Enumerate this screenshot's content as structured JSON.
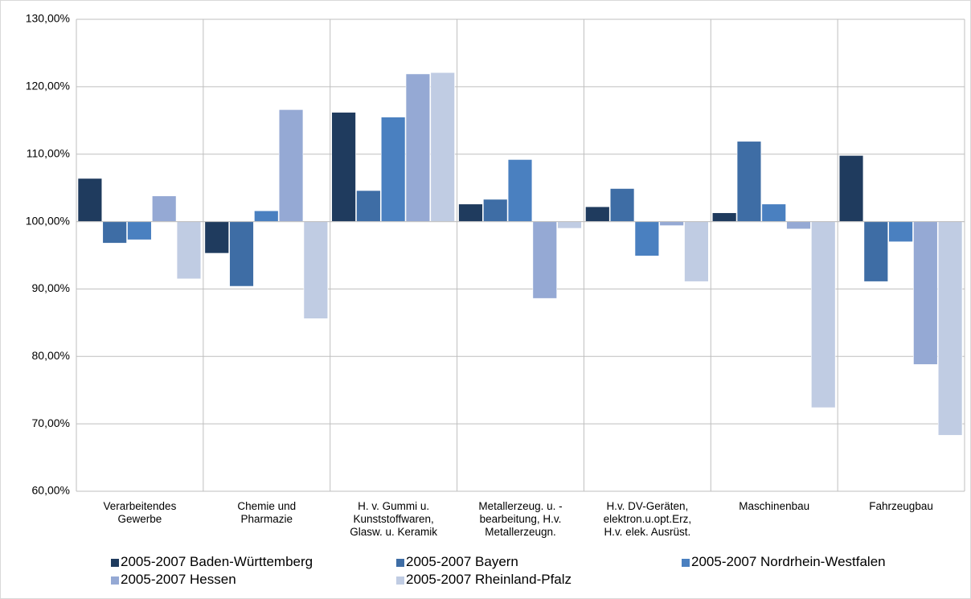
{
  "chart_data": {
    "type": "bar",
    "bar_base": 100,
    "categories": [
      "Verarbeitendes\nGewerbe",
      "Chemie und\nPharmazie",
      "H. v. Gummi u.\nKunststoffwaren,\nGlasw. u. Keramik",
      "Metallerzeug. u. -\nbearbeitung, H.v.\nMetallerzeugn.",
      "H.v. DV-Geräten,\nelektron.u.opt.Erz,\nH.v. elek. Ausrüst.",
      "Maschinenbau",
      "Fahrzeugbau"
    ],
    "series": [
      {
        "name": "2005-2007 Baden-Württemberg",
        "color": "#1f3b5e",
        "values": [
          106.4,
          95.3,
          116.2,
          102.6,
          102.2,
          101.3,
          109.8
        ]
      },
      {
        "name": "2005-2007 Bayern",
        "color": "#3e6da5",
        "values": [
          96.8,
          90.4,
          104.6,
          103.3,
          104.9,
          111.9,
          91.1
        ]
      },
      {
        "name": "2005-2007 Nordrhein-Westfalen",
        "color": "#4a80c0",
        "values": [
          97.3,
          101.6,
          115.5,
          109.2,
          94.9,
          102.6,
          97.0
        ]
      },
      {
        "name": "2005-2007 Hessen",
        "color": "#95a9d4",
        "values": [
          103.8,
          116.6,
          121.9,
          88.6,
          99.4,
          98.9,
          78.8
        ]
      },
      {
        "name": "2005-2007 Rheinland-Pfalz",
        "color": "#c0cce3",
        "values": [
          91.5,
          85.6,
          122.1,
          99.0,
          91.1,
          72.4,
          68.3
        ]
      }
    ],
    "ylim": [
      60,
      130
    ],
    "yticks": [
      {
        "value": 60,
        "label": "60,00%"
      },
      {
        "value": 70,
        "label": "70,00%"
      },
      {
        "value": 80,
        "label": "80,00%"
      },
      {
        "value": 90,
        "label": "90,00%"
      },
      {
        "value": 100,
        "label": "100,00%"
      },
      {
        "value": 110,
        "label": "110,00%"
      },
      {
        "value": 120,
        "label": "120,00%"
      },
      {
        "value": 130,
        "label": "130,00%"
      }
    ],
    "grid": true,
    "legend": "bottom"
  }
}
